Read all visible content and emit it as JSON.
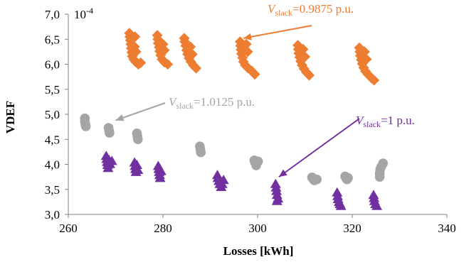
{
  "chart_data": {
    "type": "scatter",
    "xlabel": "Losses [kWh]",
    "ylabel": "VDEF",
    "xlim": [
      260,
      340
    ],
    "ylim": [
      3.0,
      7.0
    ],
    "x_ticks": [
      "260",
      "280",
      "300",
      "320",
      "340"
    ],
    "y_ticks": [
      "3,0",
      "3,5",
      "4,0",
      "4,5",
      "5,0",
      "5,5",
      "6,0",
      "6,5",
      "7,0"
    ],
    "y_multiplier": "10-4",
    "grid": false,
    "legend": "none",
    "annotations": [
      {
        "italic": "V",
        "sub": "slack",
        "rest": "=0.9875 p.u.",
        "color": "#ED7D31",
        "arrow_to": [
          297,
          6.52
        ]
      },
      {
        "italic": "V",
        "sub": "slack",
        "rest": "=1.0125 p.u.",
        "color": "#A5A5A5",
        "arrow_to": [
          270,
          4.88
        ]
      },
      {
        "italic": "V",
        "sub": "slack",
        "rest": "=1 p.u.",
        "color": "#7030A0",
        "arrow_to": [
          304.5,
          3.75
        ]
      }
    ],
    "series": [
      {
        "marker": "diamond",
        "color": "#ED7D31",
        "points": [
          [
            272.9,
            6.62
          ],
          [
            273.0,
            6.55
          ],
          [
            273.1,
            6.48
          ],
          [
            273.2,
            6.4
          ],
          [
            273.3,
            6.32
          ],
          [
            273.4,
            6.24
          ],
          [
            273.5,
            6.16
          ],
          [
            273.8,
            6.1
          ],
          [
            274.2,
            6.05
          ],
          [
            274.8,
            6.0
          ],
          [
            275.3,
            6.03
          ],
          [
            274.0,
            6.35
          ],
          [
            274.3,
            6.25
          ],
          [
            274.1,
            6.55
          ],
          [
            278.8,
            6.58
          ],
          [
            278.9,
            6.5
          ],
          [
            279.0,
            6.42
          ],
          [
            279.2,
            6.34
          ],
          [
            279.3,
            6.26
          ],
          [
            279.5,
            6.18
          ],
          [
            279.8,
            6.1
          ],
          [
            280.3,
            6.04
          ],
          [
            281.0,
            6.0
          ],
          [
            280.0,
            6.4
          ],
          [
            280.3,
            6.28
          ],
          [
            284.5,
            6.52
          ],
          [
            284.6,
            6.45
          ],
          [
            284.8,
            6.37
          ],
          [
            285.0,
            6.28
          ],
          [
            285.2,
            6.2
          ],
          [
            285.5,
            6.12
          ],
          [
            285.9,
            6.05
          ],
          [
            286.4,
            5.98
          ],
          [
            287.0,
            5.92
          ],
          [
            285.8,
            6.35
          ],
          [
            286.2,
            6.2
          ],
          [
            296.3,
            6.45
          ],
          [
            296.4,
            6.37
          ],
          [
            296.5,
            6.29
          ],
          [
            296.6,
            6.21
          ],
          [
            296.8,
            6.13
          ],
          [
            297.0,
            6.05
          ],
          [
            297.4,
            5.98
          ],
          [
            298.0,
            5.92
          ],
          [
            298.7,
            5.87
          ],
          [
            299.4,
            5.8
          ],
          [
            297.6,
            6.4
          ],
          [
            297.9,
            6.25
          ],
          [
            308.5,
            6.38
          ],
          [
            308.6,
            6.3
          ],
          [
            308.7,
            6.22
          ],
          [
            308.9,
            6.14
          ],
          [
            309.1,
            6.06
          ],
          [
            309.4,
            5.98
          ],
          [
            309.8,
            5.91
          ],
          [
            310.3,
            5.84
          ],
          [
            310.9,
            5.78
          ],
          [
            309.6,
            6.3
          ],
          [
            310.0,
            6.15
          ],
          [
            321.5,
            6.33
          ],
          [
            321.6,
            6.25
          ],
          [
            321.7,
            6.17
          ],
          [
            321.9,
            6.09
          ],
          [
            322.1,
            6.01
          ],
          [
            322.4,
            5.93
          ],
          [
            322.8,
            5.86
          ],
          [
            323.3,
            5.8
          ],
          [
            324.0,
            5.73
          ],
          [
            324.6,
            5.68
          ],
          [
            322.6,
            6.25
          ],
          [
            323.0,
            6.1
          ]
        ]
      },
      {
        "marker": "circle",
        "color": "#A5A5A5",
        "points": [
          [
            263.5,
            4.92
          ],
          [
            263.5,
            4.86
          ],
          [
            263.6,
            4.8
          ],
          [
            263.7,
            4.76
          ],
          [
            268.5,
            4.73
          ],
          [
            268.6,
            4.68
          ],
          [
            268.7,
            4.63
          ],
          [
            274.5,
            4.62
          ],
          [
            274.6,
            4.56
          ],
          [
            274.7,
            4.5
          ],
          [
            287.8,
            4.36
          ],
          [
            287.9,
            4.3
          ],
          [
            288.0,
            4.24
          ],
          [
            299.3,
            4.08
          ],
          [
            299.5,
            4.03
          ],
          [
            299.7,
            3.98
          ],
          [
            300.1,
            4.06
          ],
          [
            311.5,
            3.74
          ],
          [
            311.8,
            3.7
          ],
          [
            312.0,
            3.68
          ],
          [
            312.5,
            3.7
          ],
          [
            318.5,
            3.76
          ],
          [
            318.7,
            3.72
          ],
          [
            318.9,
            3.7
          ],
          [
            319.1,
            3.73
          ],
          [
            325.8,
            3.75
          ],
          [
            325.8,
            3.82
          ],
          [
            325.9,
            3.9
          ],
          [
            326.1,
            3.95
          ],
          [
            326.5,
            4.02
          ]
        ]
      },
      {
        "marker": "triangle",
        "color": "#7030A0",
        "points": [
          [
            268.0,
            4.18
          ],
          [
            268.1,
            4.12
          ],
          [
            268.2,
            4.06
          ],
          [
            268.3,
            4.0
          ],
          [
            268.4,
            3.94
          ],
          [
            268.6,
            4.1
          ],
          [
            268.8,
            4.02
          ],
          [
            269.2,
            4.08
          ],
          [
            274.0,
            4.05
          ],
          [
            274.1,
            3.98
          ],
          [
            274.2,
            3.92
          ],
          [
            274.3,
            3.86
          ],
          [
            274.7,
            3.9
          ],
          [
            274.5,
            4.0
          ],
          [
            279.0,
            3.98
          ],
          [
            279.1,
            3.92
          ],
          [
            279.2,
            3.86
          ],
          [
            279.3,
            3.8
          ],
          [
            279.4,
            3.74
          ],
          [
            279.6,
            3.88
          ],
          [
            291.5,
            3.8
          ],
          [
            291.6,
            3.74
          ],
          [
            291.8,
            3.68
          ],
          [
            292.0,
            3.62
          ],
          [
            292.3,
            3.56
          ],
          [
            292.8,
            3.7
          ],
          [
            292.5,
            3.62
          ],
          [
            303.8,
            3.62
          ],
          [
            303.9,
            3.55
          ],
          [
            304.0,
            3.48
          ],
          [
            304.1,
            3.4
          ],
          [
            304.3,
            3.33
          ],
          [
            304.1,
            3.28
          ],
          [
            316.8,
            3.45
          ],
          [
            316.9,
            3.38
          ],
          [
            317.0,
            3.32
          ],
          [
            317.2,
            3.26
          ],
          [
            317.4,
            3.22
          ],
          [
            317.6,
            3.18
          ],
          [
            324.5,
            3.4
          ],
          [
            324.6,
            3.34
          ],
          [
            324.7,
            3.28
          ],
          [
            324.9,
            3.22
          ],
          [
            325.2,
            3.18
          ]
        ]
      }
    ]
  }
}
